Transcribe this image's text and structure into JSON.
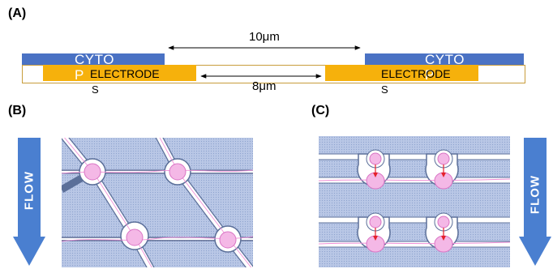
{
  "panel_a": {
    "label": "(A)",
    "cyto_left": "CYTO",
    "cyto_right": "CYTO",
    "cyto_left_tail": "P",
    "cyto_right_tail": "P",
    "electrode_left": "ELECTRODE",
    "electrode_right": "ELECTRODE",
    "electrode_left_tail": "S",
    "electrode_right_tail": "S",
    "dim_cyto_gap": "10μm",
    "dim_electrode_gap": "8μm"
  },
  "panel_b": {
    "label": "(B)",
    "flow_label": "FLOW"
  },
  "panel_c": {
    "label": "(C)",
    "flow_label": "FLOW"
  },
  "colors": {
    "cytop": "#4a72c4",
    "electrode": "#f6b10c",
    "substrate_border": "#c89d3c",
    "flow_arrow": "#4a7fd0",
    "channel_fill": "#b9c7e6",
    "cell": "#f4b8e6",
    "trap_arrow": "#e5202a"
  }
}
